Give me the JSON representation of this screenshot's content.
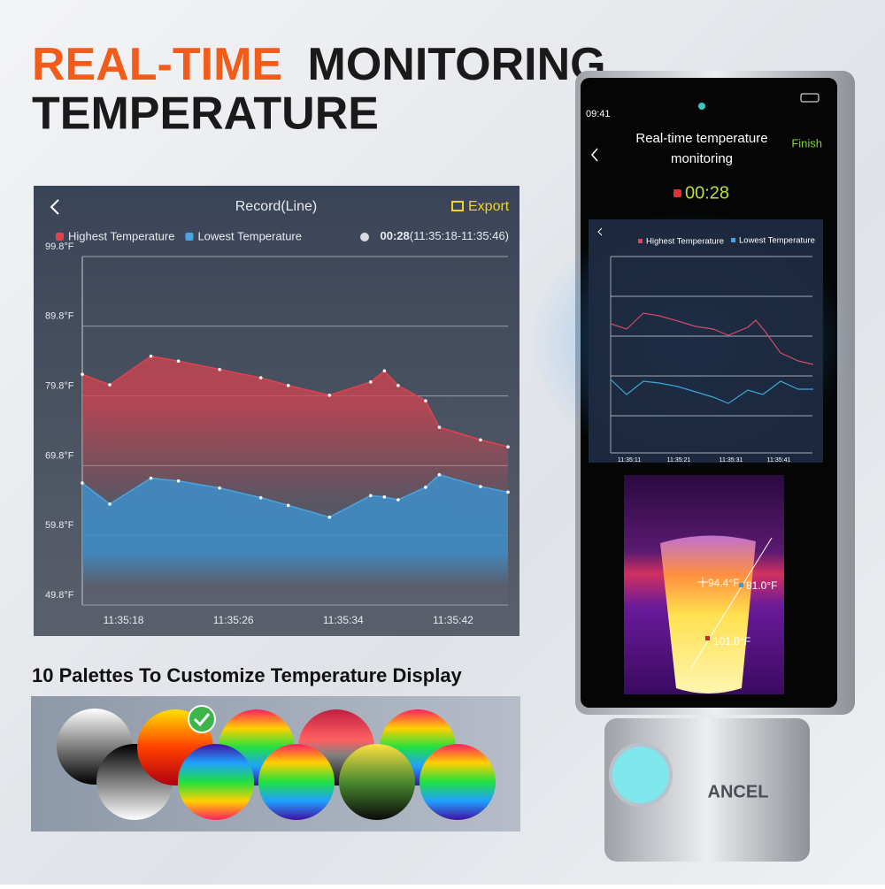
{
  "headline": {
    "accent": "REAL-TIME",
    "rest": "MONITORING",
    "line2": "TEMPERATURE"
  },
  "chart_data": {
    "type": "line",
    "title": "Record(Line)",
    "export": "Export",
    "duration": "00:28",
    "range": "(11:35:18-11:35:46)",
    "x": [
      "11:35:15",
      "11:35:17",
      "11:35:20",
      "11:35:22",
      "11:35:25",
      "11:35:28",
      "11:35:30",
      "11:35:33",
      "11:35:36",
      "11:35:37",
      "11:35:38",
      "11:35:40",
      "11:35:41",
      "11:35:44",
      "11:35:46"
    ],
    "xlim": [
      "11:35:15",
      "11:35:46"
    ],
    "xticks": [
      "11:35:18",
      "11:35:26",
      "11:35:34",
      "11:35:42"
    ],
    "ylim": [
      49.8,
      99.8
    ],
    "yticks": [
      {
        "value": 49.8,
        "label": "49.8°F"
      },
      {
        "value": 59.8,
        "label": "59.8°F"
      },
      {
        "value": 69.8,
        "label": "69.8°F"
      },
      {
        "value": 79.8,
        "label": "79.8°F"
      },
      {
        "value": 89.8,
        "label": "89.8°F"
      },
      {
        "value": 99.8,
        "label": "99.8°F"
      }
    ],
    "grid": true,
    "series": [
      {
        "name": "Highest Temperature",
        "color": "#e0434e",
        "values": [
          82.9,
          81.4,
          85.5,
          84.8,
          83.6,
          82.4,
          81.3,
          79.9,
          81.8,
          83.4,
          81.3,
          79.1,
          75.3,
          73.5,
          72.5
        ]
      },
      {
        "name": "Lowest Temperature",
        "color": "#4aa3df",
        "values": [
          67.3,
          64.3,
          68.0,
          67.6,
          66.6,
          65.2,
          64.1,
          62.4,
          65.5,
          65.3,
          64.9,
          66.7,
          68.5,
          66.8,
          66.0
        ]
      }
    ]
  },
  "palettes": {
    "title": "10 Palettes To Customize Temperature Display"
  },
  "phone": {
    "time": "09:41",
    "title_line1": "Real-time temperature",
    "title_line2": "monitoring",
    "action": "Finish",
    "timer": "00:28",
    "legend": [
      "Highest Temperature",
      "Lowest Temperature"
    ],
    "mini_xticks": [
      "11:35:11",
      "11:35:21",
      "11:35:31",
      "11:35:41"
    ],
    "readings": [
      "94.4°F",
      "81.0°F",
      "101.0°F"
    ]
  },
  "device": {
    "brand": "ANCEL"
  }
}
